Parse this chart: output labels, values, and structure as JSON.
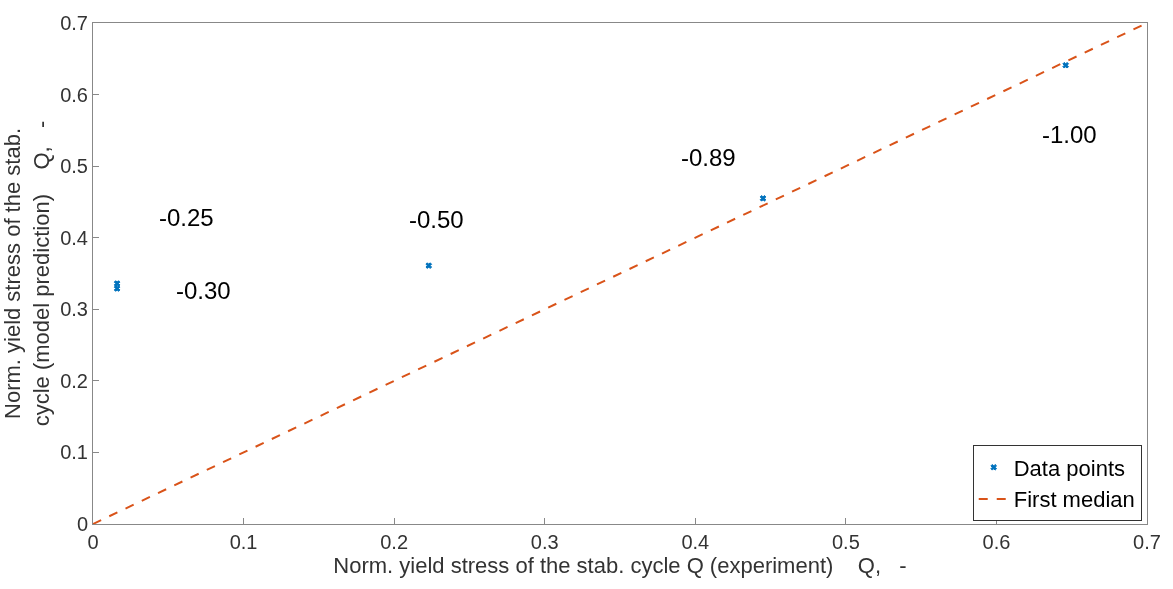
{
  "chart_data": {
    "type": "scatter",
    "xlabel": "Norm. yield stress of the stab. cycle Q (experiment)    Q,   -",
    "ylabel": "Norm. yield stress of the stab.\ncycle (model prediction)    Q,   -",
    "xlim": [
      0,
      0.7
    ],
    "ylim": [
      0,
      0.7
    ],
    "xticks": [
      0,
      0.1,
      0.2,
      0.3,
      0.4,
      0.5,
      0.6,
      0.7
    ],
    "yticks": [
      0,
      0.1,
      0.2,
      0.3,
      0.4,
      0.5,
      0.6,
      0.7
    ],
    "series": [
      {
        "name": "Data points",
        "color": "#0072bd",
        "marker": "cross",
        "x": [
          0.016,
          0.016,
          0.223,
          0.445,
          0.646
        ],
        "values": [
          0.336,
          0.329,
          0.361,
          0.455,
          0.641
        ]
      },
      {
        "name": "First median",
        "type": "line",
        "color": "#d95319",
        "line_style": "dashed",
        "marker": "none",
        "x": [
          0,
          0.7
        ],
        "values": [
          0,
          0.7
        ]
      }
    ],
    "annotations": [
      {
        "text": "-0.25",
        "x": 0.016,
        "y": 0.336
      },
      {
        "text": "-0.30",
        "x": 0.016,
        "y": 0.329
      },
      {
        "text": "-0.50",
        "x": 0.223,
        "y": 0.361
      },
      {
        "text": "-0.89",
        "x": 0.445,
        "y": 0.455
      },
      {
        "text": "-1.00",
        "x": 0.646,
        "y": 0.641
      }
    ],
    "grid": false,
    "legend": "bottom right"
  }
}
